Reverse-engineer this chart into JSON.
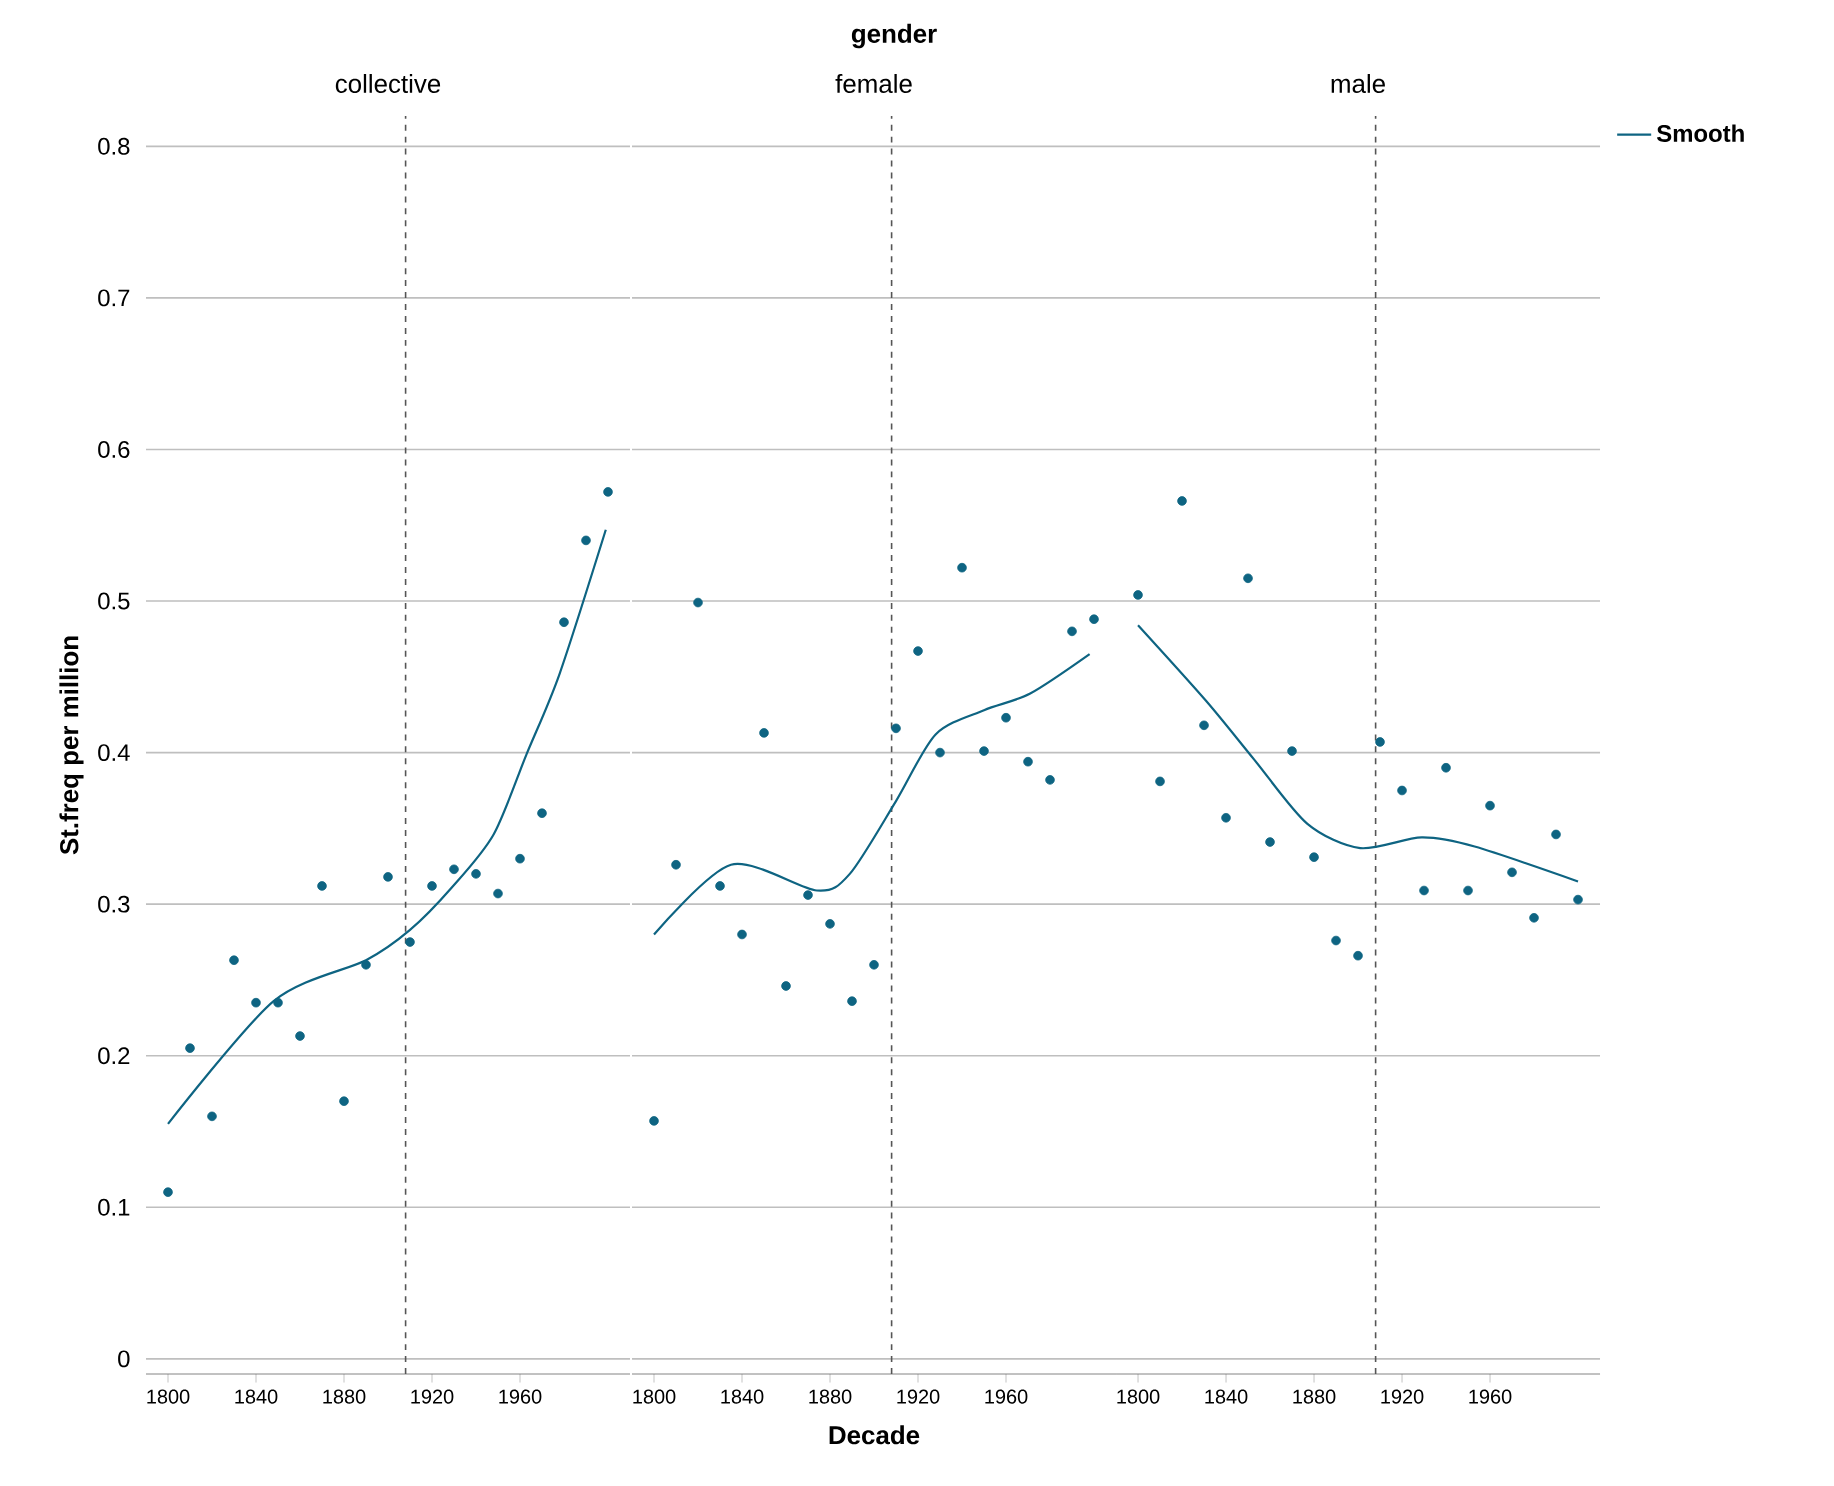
{
  "chart_data": [
    {
      "type": "scatter",
      "subtitle": "collective",
      "ylabel": "St.freq per million",
      "xlim": [
        1790,
        2010
      ],
      "xticks": [
        1800,
        1840,
        1880,
        1920,
        1960
      ],
      "ylim": [
        -0.01,
        0.82
      ],
      "yticks": [
        0,
        0.1,
        0.2,
        0.3,
        0.4,
        0.5,
        0.6,
        0.7,
        0.8
      ],
      "grid": "y",
      "ref_lines": [
        {
          "axis": "x",
          "value": 1908,
          "color": "#555555",
          "line_style": "dashed"
        }
      ],
      "series": [
        {
          "marker": "circle",
          "color": "#0e6482",
          "x": [
            1800,
            1810,
            1820,
            1830,
            1840,
            1850,
            1860,
            1870,
            1880,
            1890,
            1900,
            1910,
            1920,
            1930,
            1940,
            1950,
            1960,
            1970,
            1980,
            1990,
            2000
          ],
          "values": [
            0.11,
            0.205,
            0.16,
            0.263,
            0.235,
            0.235,
            0.213,
            0.312,
            0.17,
            0.26,
            0.318,
            0.275,
            0.312,
            0.323,
            0.32,
            0.307,
            0.33,
            0.36,
            0.486,
            0.54,
            0.572
          ]
        },
        {
          "type": "line",
          "marker": "none",
          "color": "#0e6482",
          "x": [
            1800,
            1848,
            1890,
            1910,
            1929,
            1948,
            1963,
            1978,
            1999
          ],
          "values": [
            0.155,
            0.236,
            0.263,
            0.283,
            0.311,
            0.346,
            0.399,
            0.452,
            0.547
          ]
        }
      ]
    },
    {
      "type": "scatter",
      "title": "gender",
      "subtitle": "female",
      "xlabel": "Decade",
      "xlim": [
        1790,
        2010
      ],
      "xticks": [
        1800,
        1840,
        1880,
        1920,
        1960
      ],
      "ylim": [
        -0.01,
        0.82
      ],
      "yticks": [
        0,
        0.1,
        0.2,
        0.3,
        0.4,
        0.5,
        0.6,
        0.7,
        0.8
      ],
      "grid": "y",
      "tick_labels": "x",
      "ref_lines": [
        {
          "axis": "x",
          "value": 1908,
          "color": "#555555",
          "line_style": "dashed"
        }
      ],
      "series": [
        {
          "marker": "circle",
          "color": "#0e6482",
          "x": [
            1800,
            1810,
            1820,
            1830,
            1840,
            1850,
            1860,
            1870,
            1880,
            1890,
            1900,
            1910,
            1920,
            1930,
            1940,
            1950,
            1960,
            1970,
            1980,
            1990,
            2000
          ],
          "values": [
            0.157,
            0.326,
            0.499,
            0.312,
            0.28,
            0.413,
            0.246,
            0.306,
            0.287,
            0.236,
            0.26,
            0.416,
            0.467,
            0.4,
            0.522,
            0.401,
            0.423,
            0.394,
            0.382,
            0.48,
            0.488
          ]
        },
        {
          "type": "line",
          "marker": "none",
          "color": "#0e6482",
          "x": [
            1800,
            1835,
            1874,
            1889,
            1910,
            1928,
            1950,
            1971,
            1998
          ],
          "values": [
            0.28,
            0.326,
            0.309,
            0.32,
            0.368,
            0.412,
            0.428,
            0.439,
            0.465
          ]
        }
      ]
    },
    {
      "type": "scatter",
      "subtitle": "male",
      "legend": "right",
      "xlim": [
        1790,
        2010
      ],
      "xticks": [
        1800,
        1840,
        1880,
        1920,
        1960
      ],
      "ylim": [
        -0.01,
        0.82
      ],
      "yticks": [
        0,
        0.1,
        0.2,
        0.3,
        0.4,
        0.5,
        0.6,
        0.7,
        0.8
      ],
      "grid": "y",
      "tick_labels": "x",
      "ref_lines": [
        {
          "axis": "x",
          "value": 1908,
          "color": "#555555",
          "line_style": "dashed"
        }
      ],
      "series": [
        {
          "marker": "circle",
          "color": "#0e6482",
          "x": [
            1800,
            1810,
            1820,
            1830,
            1840,
            1850,
            1860,
            1870,
            1880,
            1890,
            1900,
            1910,
            1920,
            1930,
            1940,
            1950,
            1960,
            1970,
            1980,
            1990,
            2000
          ],
          "values": [
            0.504,
            0.381,
            0.566,
            0.418,
            0.357,
            0.515,
            0.341,
            0.401,
            0.331,
            0.276,
            0.266,
            0.407,
            0.375,
            0.309,
            0.39,
            0.309,
            0.365,
            0.321,
            0.291,
            0.346,
            0.303
          ]
        },
        {
          "type": "line",
          "name": "Smooth",
          "marker": "none",
          "color": "#0e6482",
          "x": [
            1800,
            1831,
            1853,
            1877,
            1901,
            1929,
            1953,
            2000
          ],
          "values": [
            0.484,
            0.434,
            0.395,
            0.353,
            0.337,
            0.344,
            0.338,
            0.315
          ]
        }
      ]
    }
  ]
}
